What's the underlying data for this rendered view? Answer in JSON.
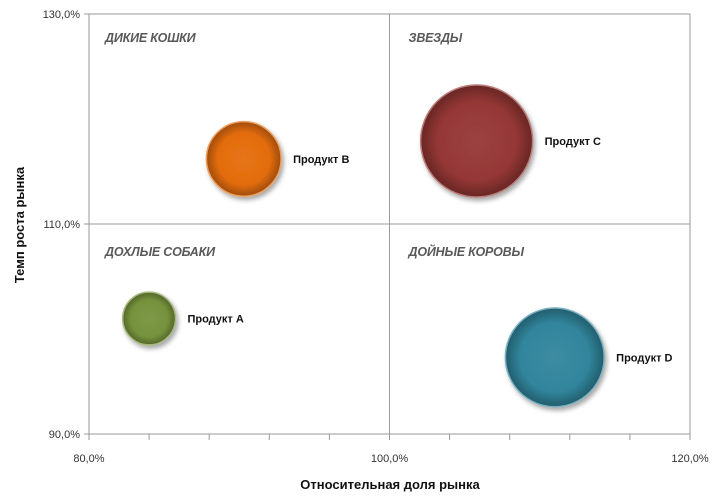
{
  "chart_data": {
    "type": "bubble",
    "xlabel": "Относительная доля рынка",
    "ylabel": "Темп роста рынка",
    "xlim": [
      80,
      120
    ],
    "ylim": [
      90,
      130
    ],
    "x_ticks": [
      {
        "value": 80,
        "label": "80,0%"
      },
      {
        "value": 100,
        "label": "100,0%"
      },
      {
        "value": 120,
        "label": "120,0%"
      }
    ],
    "y_ticks": [
      {
        "value": 90,
        "label": "90,0%"
      },
      {
        "value": 110,
        "label": "110,0%"
      },
      {
        "value": 130,
        "label": "130,0%"
      }
    ],
    "x_minor_tick_step": 4,
    "divider_x": 100,
    "divider_y": 110,
    "quadrants": [
      {
        "label": "ДИКИЕ КОШКИ",
        "position": "top-left"
      },
      {
        "label": "ЗВЕЗДЫ",
        "position": "top-right"
      },
      {
        "label": "ДОХЛЫЕ СОБАКИ",
        "position": "bottom-left"
      },
      {
        "label": "ДОЙНЫЕ КОРОВЫ",
        "position": "bottom-right"
      }
    ],
    "points": [
      {
        "name": "Продукт A",
        "x": 84.0,
        "y": 101.0,
        "size": 4,
        "color": "#76923c"
      },
      {
        "name": "Продукт B",
        "x": 90.3,
        "y": 116.2,
        "size": 8,
        "color": "#e36c0a"
      },
      {
        "name": "Продукт C",
        "x": 105.8,
        "y": 117.9,
        "size": 18,
        "color": "#953735"
      },
      {
        "name": "Продукт D",
        "x": 111.0,
        "y": 97.3,
        "size": 14,
        "color": "#31859c"
      }
    ],
    "grid": false
  }
}
